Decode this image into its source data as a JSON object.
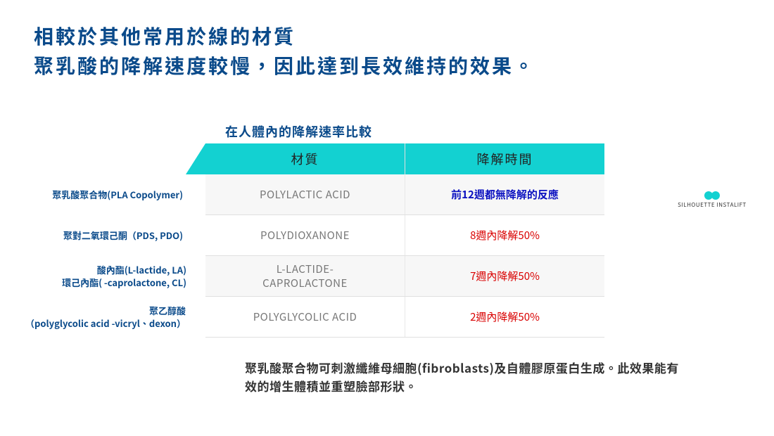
{
  "heading": {
    "line1": "相較於其他常用於線的材質",
    "line2": "聚乳酸的降解速度較慢，因此達到長效維持的效果。"
  },
  "table": {
    "title": "在人體內的降解速率比較",
    "headers": {
      "col1": "材質",
      "col2": "降解時間"
    },
    "header_bg": "#13d1d1",
    "rows": [
      {
        "label": "聚乳酸聚合物(PLA Copolymer)",
        "label_left": "55",
        "label_width": "205",
        "material": "POLYLACTIC ACID",
        "time": "前12週都無降解的反應",
        "time_class": "td-time-highlight"
      },
      {
        "label": "聚對二氧環己酮（PDS, PDO)",
        "label_left": "75",
        "label_width": "185",
        "material": "POLYDIOXANONE",
        "time": "8週內降解50%",
        "time_class": "td-time-red"
      },
      {
        "label": "酸內酯(L-lactide, LA)\n環己內酯( -caprolactone, CL)",
        "label_left": "65",
        "label_width": "200",
        "material": "L-LACTIDE-\nCAPROLACTONE",
        "time": "7週內降解50%",
        "time_class": "td-time-red"
      },
      {
        "label": "聚乙醇酸\n（polyglycolic acid -vicryl、dexon）",
        "label_left": "14",
        "label_width": "250",
        "material": "POLYGLYCOLIC ACID",
        "time": "2週內降解50%",
        "time_class": "td-time-red"
      }
    ]
  },
  "brand": {
    "name": "SILHOUETTE INSTALIFT"
  },
  "footnote": "聚乳酸聚合物可刺激纖維母細胞(fibroblasts)及自體膠原蛋白生成。此效果能有效的增生體積並重塑臉部形狀。",
  "colors": {
    "heading": "#0a4a8a",
    "teal": "#13d1d1",
    "highlight_blue": "#0a10c0",
    "red": "#d90000",
    "material_grey": "#777777"
  }
}
